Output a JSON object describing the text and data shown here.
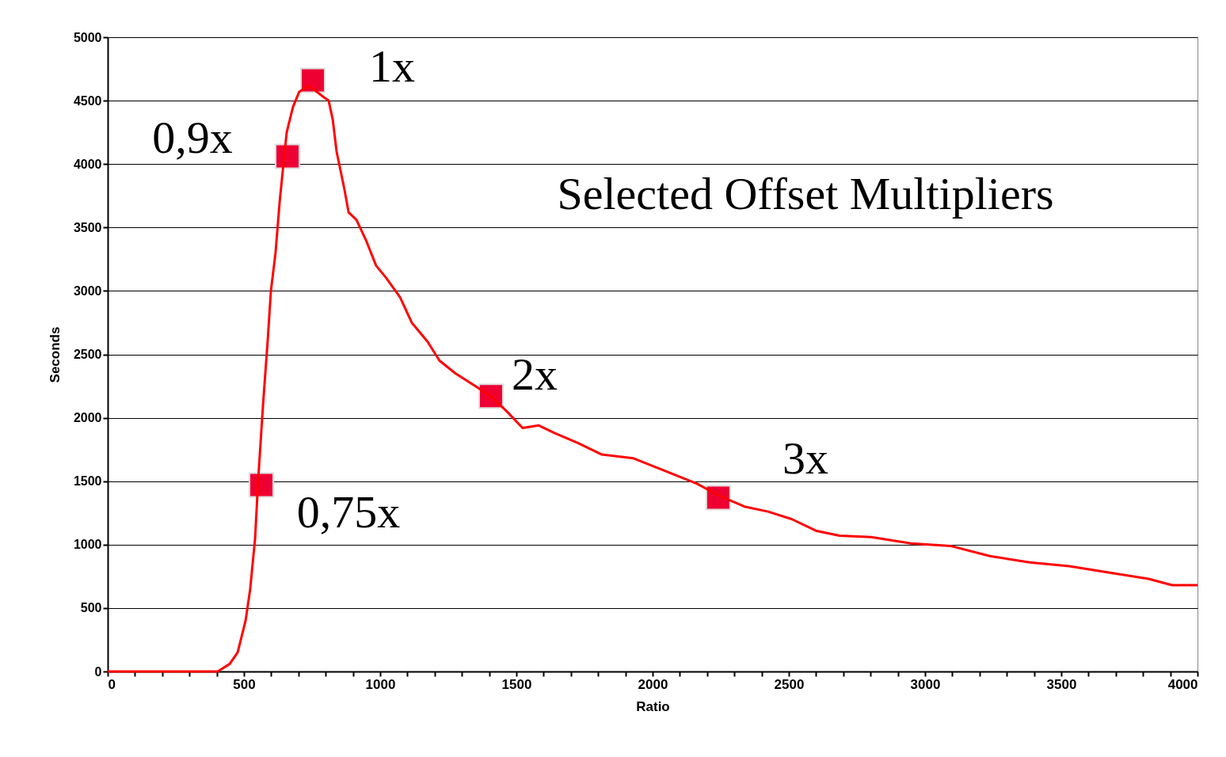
{
  "chart_data": {
    "type": "line",
    "xlabel": "Ratio",
    "ylabel": "Seconds",
    "xlim": [
      0,
      4000
    ],
    "ylim": [
      0,
      5000
    ],
    "xticks": [
      0,
      {
        "value": 100,
        "label": null
      },
      {
        "value": 200,
        "label": null
      },
      {
        "value": 300,
        "label": null
      },
      {
        "value": 400,
        "label": null
      },
      500,
      {
        "value": 600,
        "label": null
      },
      {
        "value": 700,
        "label": null
      },
      {
        "value": 800,
        "label": null
      },
      {
        "value": 900,
        "label": null
      },
      1000,
      {
        "value": 1100,
        "label": null
      },
      {
        "value": 1200,
        "label": null
      },
      {
        "value": 1300,
        "label": null
      },
      {
        "value": 1400,
        "label": null
      },
      1500,
      {
        "value": 1600,
        "label": null
      },
      {
        "value": 1700,
        "label": null
      },
      {
        "value": 1800,
        "label": null
      },
      {
        "value": 1900,
        "label": null
      },
      2000,
      {
        "value": 2100,
        "label": null
      },
      {
        "value": 2200,
        "label": null
      },
      {
        "value": 2300,
        "label": null
      },
      {
        "value": 2400,
        "label": null
      },
      2500,
      {
        "value": 2600,
        "label": null
      },
      {
        "value": 2700,
        "label": null
      },
      {
        "value": 2800,
        "label": null
      },
      {
        "value": 2900,
        "label": null
      },
      3000,
      {
        "value": 3100,
        "label": null
      },
      {
        "value": 3200,
        "label": null
      },
      {
        "value": 3300,
        "label": null
      },
      {
        "value": 3400,
        "label": null
      },
      3500,
      {
        "value": 3600,
        "label": null
      },
      {
        "value": 3700,
        "label": null
      },
      {
        "value": 3800,
        "label": null
      },
      {
        "value": 3900,
        "label": null
      },
      4000
    ],
    "yticks": [
      0,
      500,
      1000,
      1500,
      2000,
      2500,
      3000,
      3500,
      4000,
      4500,
      5000
    ],
    "grid": "y",
    "series": [
      {
        "color": "#ff0000",
        "marker": "none",
        "x": [
          0,
          404,
          448,
          477,
          506,
          523,
          541,
          552,
          570,
          587,
          599,
          616,
          631,
          645,
          657,
          680,
          703,
          738,
          791,
          811,
          826,
          840,
          869,
          884,
          913,
          948,
          985,
          1023,
          1073,
          1116,
          1174,
          1218,
          1276,
          1349,
          1407,
          1465,
          1523,
          1581,
          1640,
          1727,
          1814,
          1930,
          2047,
          2163,
          2250,
          2337,
          2424,
          2512,
          2599,
          2686,
          2802,
          2948,
          3093,
          3238,
          3384,
          3529,
          3674,
          3820,
          3907,
          4000
        ],
        "values": [
          0,
          0,
          60,
          150,
          400,
          650,
          1050,
          1500,
          2100,
          2600,
          3000,
          3300,
          3700,
          4000,
          4250,
          4450,
          4570,
          4620,
          4530,
          4500,
          4350,
          4100,
          3800,
          3620,
          3560,
          3400,
          3200,
          3100,
          2950,
          2750,
          2600,
          2450,
          2350,
          2250,
          2170,
          2050,
          1920,
          1940,
          1880,
          1800,
          1710,
          1680,
          1580,
          1480,
          1380,
          1300,
          1260,
          1200,
          1110,
          1070,
          1060,
          1010,
          990,
          910,
          860,
          830,
          780,
          730,
          680,
          680
        ]
      },
      {
        "type": "scatter",
        "color": "#ee0033",
        "marker": "square",
        "x": [
          564,
          660,
          753,
          1407,
          2241
        ],
        "values": [
          1470,
          4060,
          4660,
          2170,
          1370
        ]
      }
    ],
    "annotations": [
      "Selected Offset Multipliers",
      {
        "text": "0,75x",
        "x": 564,
        "y": 1470
      },
      {
        "text": "0,9x",
        "x": 660,
        "y": 4060
      },
      {
        "text": "1x",
        "x": 753,
        "y": 4660
      },
      {
        "text": "2x",
        "x": 1407,
        "y": 2170
      },
      {
        "text": "3x",
        "x": 2241,
        "y": 1370
      }
    ]
  }
}
